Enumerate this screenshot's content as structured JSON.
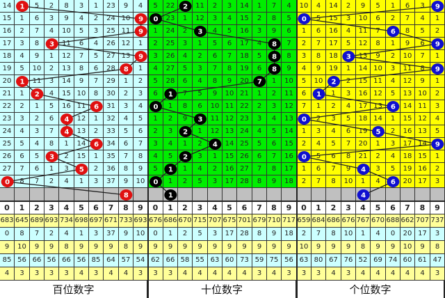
{
  "colors": {
    "hundreds_bg": "#ccffff",
    "tens_bg": "#00ee00",
    "units_bg": "#ffff00",
    "hundreds_ball": "#e01010",
    "tens_ball": "#000000",
    "units_ball": "#1010d0",
    "forecast_row": "#c0c0c0",
    "stat_yellow": "#ffff99",
    "stat_cyan": "#ccffff"
  },
  "panels": [
    {
      "key": "hundreds",
      "title": "百位数字",
      "rows": [
        {
          "cells": [
            14,
            1,
            5,
            2,
            8,
            3,
            1,
            23,
            9,
            4
          ],
          "hit": 1
        },
        {
          "cells": [
            15,
            1,
            6,
            3,
            9,
            4,
            2,
            24,
            10,
            9
          ],
          "hit": 9
        },
        {
          "cells": [
            16,
            2,
            7,
            4,
            10,
            5,
            3,
            25,
            11,
            9
          ],
          "hit": 9
        },
        {
          "cells": [
            17,
            3,
            8,
            3,
            11,
            6,
            4,
            26,
            12,
            1
          ],
          "hit": 3
        },
        {
          "cells": [
            18,
            4,
            9,
            1,
            12,
            7,
            5,
            27,
            13,
            9
          ],
          "hit": 9
        },
        {
          "cells": [
            19,
            5,
            10,
            2,
            13,
            8,
            6,
            28,
            8,
            1
          ],
          "hit": 8
        },
        {
          "cells": [
            20,
            1,
            11,
            3,
            14,
            9,
            7,
            29,
            1,
            2
          ],
          "hit": 1
        },
        {
          "cells": [
            21,
            1,
            2,
            4,
            15,
            10,
            8,
            30,
            2,
            3
          ],
          "hit": 2
        },
        {
          "cells": [
            22,
            2,
            1,
            5,
            16,
            11,
            6,
            31,
            3,
            4
          ],
          "hit": 6
        },
        {
          "cells": [
            23,
            3,
            2,
            6,
            4,
            12,
            1,
            32,
            4,
            5
          ],
          "hit": 4
        },
        {
          "cells": [
            24,
            4,
            3,
            7,
            4,
            13,
            2,
            33,
            5,
            6
          ],
          "hit": 4
        },
        {
          "cells": [
            25,
            5,
            4,
            8,
            1,
            14,
            6,
            34,
            6,
            7
          ],
          "hit": 6
        },
        {
          "cells": [
            26,
            6,
            5,
            3,
            2,
            15,
            1,
            35,
            7,
            8
          ],
          "hit": 3
        },
        {
          "cells": [
            27,
            7,
            6,
            1,
            3,
            5,
            2,
            36,
            8,
            9
          ],
          "hit": 5
        },
        {
          "cells": [
            0,
            8,
            7,
            2,
            4,
            1,
            3,
            37,
            9,
            10
          ],
          "hit": 0
        }
      ],
      "forecast": 8,
      "digits": [
        "0",
        "1",
        "2",
        "3",
        "4",
        "5",
        "6",
        "7",
        "8",
        "9"
      ],
      "stats": [
        [
          683,
          645,
          689,
          693,
          734,
          698,
          697,
          671,
          733,
          693
        ],
        [
          0,
          8,
          7,
          2,
          4,
          1,
          3,
          37,
          9,
          10
        ],
        [
          9,
          10,
          9,
          9,
          8,
          9,
          9,
          9,
          8,
          9
        ],
        [
          85,
          56,
          66,
          56,
          66,
          56,
          85,
          64,
          57,
          54
        ],
        [
          4,
          3,
          3,
          3,
          3,
          4,
          3,
          4,
          4,
          3
        ]
      ]
    },
    {
      "key": "tens",
      "title": "十位数字",
      "rows": [
        {
          "cells": [
            5,
            22,
            2,
            11,
            2,
            3,
            14,
            1,
            7,
            4
          ],
          "hit": 2
        },
        {
          "cells": [
            0,
            23,
            1,
            12,
            3,
            4,
            15,
            2,
            8,
            5
          ],
          "hit": 0
        },
        {
          "cells": [
            1,
            24,
            2,
            3,
            4,
            5,
            16,
            3,
            9,
            6
          ],
          "hit": 3
        },
        {
          "cells": [
            2,
            25,
            3,
            1,
            5,
            6,
            17,
            4,
            8,
            7
          ],
          "hit": 8
        },
        {
          "cells": [
            3,
            26,
            4,
            2,
            6,
            7,
            18,
            5,
            8,
            8
          ],
          "hit": 8
        },
        {
          "cells": [
            4,
            27,
            5,
            3,
            7,
            8,
            19,
            6,
            8,
            9
          ],
          "hit": 8
        },
        {
          "cells": [
            5,
            28,
            6,
            4,
            8,
            9,
            20,
            7,
            1,
            10
          ],
          "hit": 7
        },
        {
          "cells": [
            6,
            1,
            7,
            5,
            9,
            10,
            21,
            1,
            2,
            11
          ],
          "hit": 1
        },
        {
          "cells": [
            0,
            1,
            8,
            6,
            10,
            11,
            22,
            2,
            3,
            12
          ],
          "hit": 0
        },
        {
          "cells": [
            1,
            2,
            9,
            3,
            11,
            12,
            23,
            3,
            4,
            13
          ],
          "hit": 3
        },
        {
          "cells": [
            2,
            3,
            2,
            1,
            12,
            13,
            24,
            4,
            5,
            14
          ],
          "hit": 2
        },
        {
          "cells": [
            3,
            4,
            1,
            2,
            4,
            14,
            25,
            5,
            6,
            15
          ],
          "hit": 4
        },
        {
          "cells": [
            4,
            5,
            2,
            3,
            1,
            15,
            26,
            6,
            7,
            16
          ],
          "hit": 2
        },
        {
          "cells": [
            5,
            1,
            1,
            4,
            2,
            16,
            27,
            7,
            8,
            17
          ],
          "hit": 1
        },
        {
          "cells": [
            0,
            1,
            2,
            5,
            3,
            17,
            28,
            8,
            9,
            18
          ],
          "hit": 0
        }
      ],
      "forecast": 1,
      "digits": [
        "0",
        "1",
        "2",
        "3",
        "4",
        "5",
        "6",
        "7",
        "8",
        "9"
      ],
      "stats": [
        [
          676,
          686,
          670,
          715,
          707,
          675,
          701,
          679,
          710,
          717
        ],
        [
          0,
          1,
          2,
          5,
          3,
          17,
          28,
          8,
          9,
          18
        ],
        [
          9,
          9,
          9,
          9,
          9,
          9,
          9,
          9,
          9,
          9
        ],
        [
          62,
          66,
          58,
          55,
          63,
          60,
          73,
          59,
          75,
          56
        ],
        [
          3,
          3,
          4,
          4,
          4,
          4,
          4,
          3,
          4,
          3
        ]
      ]
    },
    {
      "key": "units",
      "title": "个位数字",
      "rows": [
        {
          "cells": [
            10,
            4,
            14,
            2,
            9,
            5,
            1,
            6,
            3,
            9
          ],
          "hit": 9
        },
        {
          "cells": [
            0,
            5,
            15,
            3,
            10,
            6,
            2,
            7,
            4,
            1
          ],
          "hit": 0
        },
        {
          "cells": [
            1,
            6,
            16,
            4,
            11,
            7,
            6,
            8,
            5,
            2
          ],
          "hit": 6
        },
        {
          "cells": [
            2,
            7,
            17,
            5,
            12,
            8,
            1,
            9,
            6,
            9
          ],
          "hit": 9
        },
        {
          "cells": [
            3,
            8,
            18,
            3,
            13,
            9,
            2,
            10,
            7,
            1
          ],
          "hit": 3
        },
        {
          "cells": [
            4,
            9,
            19,
            1,
            14,
            10,
            3,
            11,
            8,
            9
          ],
          "hit": 9
        },
        {
          "cells": [
            5,
            10,
            2,
            2,
            15,
            11,
            4,
            12,
            9,
            1
          ],
          "hit": 2
        },
        {
          "cells": [
            6,
            1,
            1,
            3,
            16,
            12,
            5,
            13,
            10,
            2
          ],
          "hit": 1
        },
        {
          "cells": [
            7,
            1,
            2,
            4,
            17,
            13,
            6,
            14,
            11,
            3
          ],
          "hit": 6
        },
        {
          "cells": [
            0,
            2,
            3,
            5,
            18,
            14,
            1,
            15,
            12,
            4
          ],
          "hit": 0
        },
        {
          "cells": [
            1,
            3,
            4,
            6,
            19,
            5,
            2,
            16,
            13,
            5
          ],
          "hit": 5
        },
        {
          "cells": [
            2,
            4,
            5,
            7,
            20,
            1,
            3,
            17,
            14,
            9
          ],
          "hit": 9
        },
        {
          "cells": [
            0,
            5,
            6,
            8,
            21,
            2,
            4,
            18,
            15,
            1
          ],
          "hit": 0
        },
        {
          "cells": [
            1,
            6,
            7,
            9,
            4,
            3,
            5,
            19,
            16,
            2
          ],
          "hit": 4
        },
        {
          "cells": [
            2,
            7,
            8,
            10,
            1,
            4,
            6,
            20,
            17,
            3
          ],
          "hit": 6
        }
      ],
      "forecast": 4,
      "digits": [
        "0",
        "1",
        "2",
        "3",
        "4",
        "5",
        "6",
        "7",
        "8",
        "9"
      ],
      "stats": [
        [
          659,
          684,
          686,
          676,
          767,
          670,
          688,
          662,
          707,
          737
        ],
        [
          2,
          7,
          8,
          10,
          1,
          4,
          0,
          20,
          17,
          3
        ],
        [
          10,
          9,
          9,
          9,
          8,
          9,
          9,
          10,
          9,
          8
        ],
        [
          63,
          80,
          67,
          76,
          52,
          69,
          74,
          60,
          61,
          47
        ],
        [
          3,
          3,
          4,
          3,
          4,
          4,
          4,
          4,
          4,
          3
        ]
      ]
    }
  ]
}
